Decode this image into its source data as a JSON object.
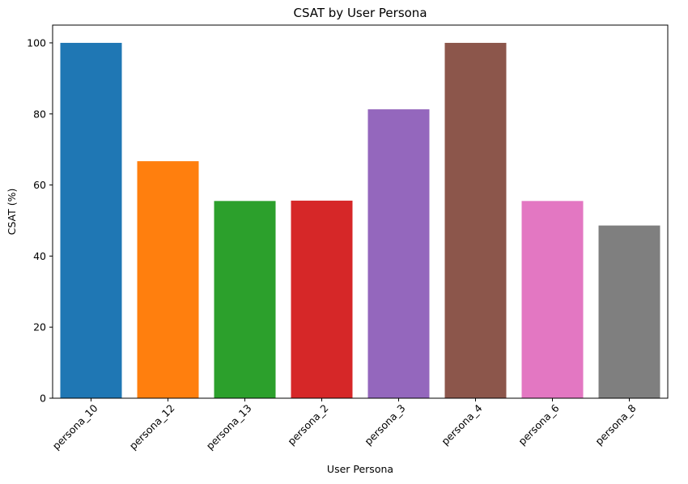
{
  "chart_data": {
    "type": "bar",
    "title": "CSAT by User Persona",
    "xlabel": "User Persona",
    "ylabel": "CSAT (%)",
    "categories": [
      "persona_10",
      "persona_12",
      "persona_13",
      "persona_2",
      "persona_3",
      "persona_4",
      "persona_6",
      "persona_8"
    ],
    "values": [
      100,
      66.7,
      55.5,
      55.6,
      81.3,
      100,
      55.5,
      48.6
    ],
    "colors": [
      "#1f77b4",
      "#ff7f0e",
      "#2ca02c",
      "#d62728",
      "#9467bd",
      "#8c564b",
      "#e377c2",
      "#7f7f7f"
    ],
    "ylim": [
      0,
      105
    ],
    "yticks": [
      0,
      20,
      40,
      60,
      80,
      100
    ],
    "grid": false,
    "legend": "none"
  }
}
